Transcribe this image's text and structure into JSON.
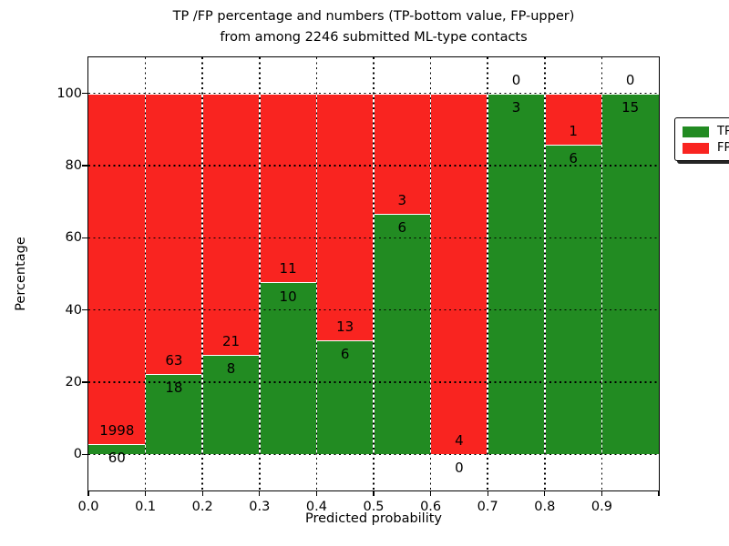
{
  "title": {
    "line1": "TP /FP percentage and numbers (TP-bottom value, FP-upper)",
    "line2": "from among 2246 submitted ML-type contacts"
  },
  "axes": {
    "xlabel": "Predicted probability",
    "ylabel": "Percentage",
    "x_tick_labels": [
      "0.0",
      "0.1",
      "0.2",
      "0.3",
      "0.4",
      "0.5",
      "0.6",
      "0.7",
      "0.8",
      "0.9"
    ],
    "y_tick_labels": [
      "0",
      "20",
      "40",
      "60",
      "80",
      "100"
    ],
    "y_tick_values": [
      0,
      20,
      40,
      60,
      80,
      100
    ],
    "xlim": [
      0.0,
      1.0
    ],
    "ylim": [
      -10,
      110
    ]
  },
  "legend": {
    "position": "upper right",
    "items": [
      {
        "label": "TP",
        "color": "#228b22"
      },
      {
        "label": "FP",
        "color": "#f92420"
      }
    ]
  },
  "colors": {
    "tp": "#228b22",
    "fp": "#f92420",
    "grid": "#000000",
    "background": "#ffffff",
    "bar_edge": "#ffffff"
  },
  "chart_data": {
    "type": "bar",
    "stacked": true,
    "normalized": "each bin scaled to 100%",
    "title": "TP /FP percentage and numbers (TP-bottom value, FP-upper) from among 2246 submitted ML-type contacts",
    "xlabel": "Predicted probability",
    "ylabel": "Percentage",
    "total_contacts": 2246,
    "bin_width": 0.1,
    "categories": [
      "0.0-0.1",
      "0.1-0.2",
      "0.2-0.3",
      "0.3-0.4",
      "0.4-0.5",
      "0.5-0.6",
      "0.6-0.7",
      "0.7-0.8",
      "0.8-0.9",
      "0.9-1.0"
    ],
    "series": [
      {
        "name": "TP",
        "color": "#228b22",
        "counts": [
          60,
          18,
          8,
          10,
          6,
          6,
          0,
          3,
          6,
          15
        ]
      },
      {
        "name": "FP",
        "color": "#f92420",
        "counts": [
          1998,
          63,
          21,
          11,
          13,
          3,
          4,
          0,
          1,
          0
        ]
      }
    ],
    "bar_value_labels": "counts printed per bin: TP below boundary, FP above boundary",
    "xlim": [
      0,
      1
    ],
    "ylim": [
      -10,
      110
    ],
    "grid": true,
    "grid_style": "dotted",
    "legend_position": "upper right"
  }
}
